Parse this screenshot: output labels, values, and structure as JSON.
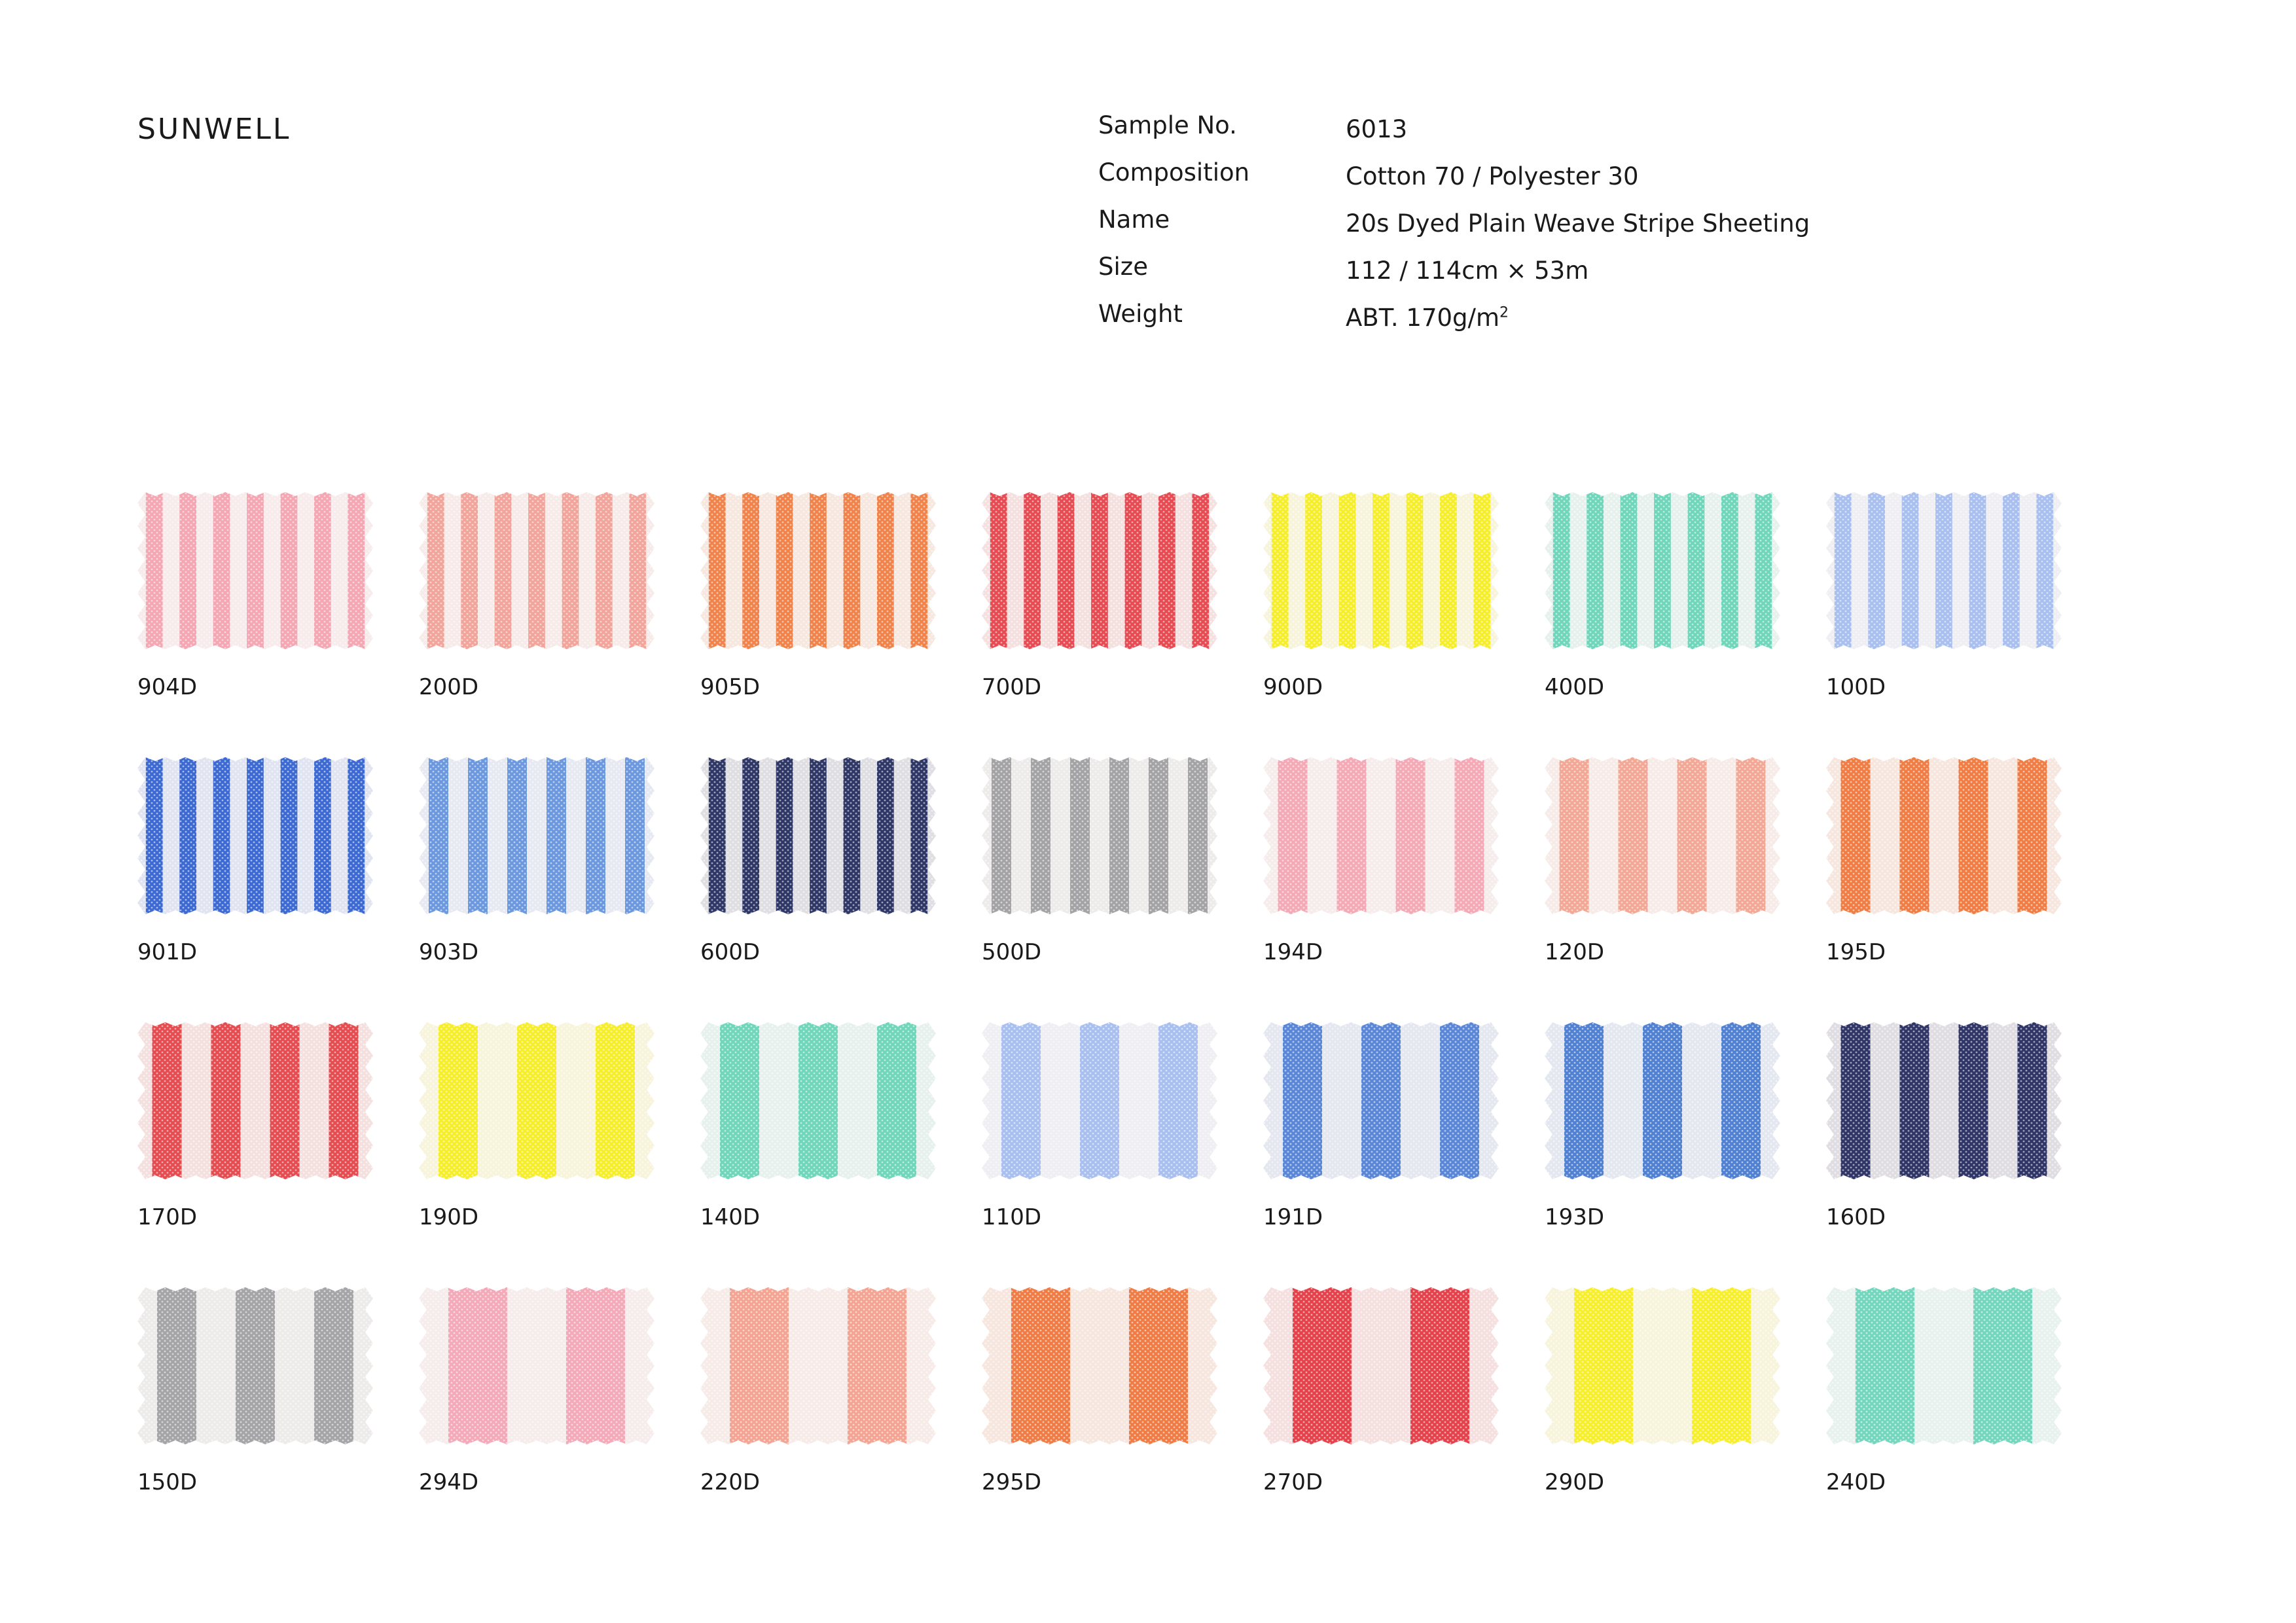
{
  "brand": "SUNWELL",
  "specs": [
    {
      "label": "Sample No.",
      "value": "6013"
    },
    {
      "label": "Composition",
      "value": "Cotton 70 / Polyester 30"
    },
    {
      "label": "Name",
      "value": "20s Dyed Plain Weave Stripe Sheeting"
    },
    {
      "label": "Size",
      "value": "112 / 114cm × 53m"
    },
    {
      "label": "Weight",
      "value": "ABT. 170g/m",
      "superscript": "2"
    }
  ],
  "swatches": [
    [
      {
        "code": "904D",
        "color": "#f4a7b3",
        "stripes": 7
      },
      {
        "code": "200D",
        "color": "#f2a49a",
        "stripes": 7
      },
      {
        "code": "905D",
        "color": "#f0824a",
        "stripes": 7
      },
      {
        "code": "700D",
        "color": "#e84a52",
        "stripes": 7
      },
      {
        "code": "900D",
        "color": "#f6ee2a",
        "stripes": 7
      },
      {
        "code": "400D",
        "color": "#6fd6bb",
        "stripes": 7
      },
      {
        "code": "100D",
        "color": "#a9bff0",
        "stripes": 7
      }
    ],
    [
      {
        "code": "901D",
        "color": "#3d6ad2",
        "stripes": 7
      },
      {
        "code": "903D",
        "color": "#6b98de",
        "stripes": 6
      },
      {
        "code": "600D",
        "color": "#2e3766",
        "stripes": 7
      },
      {
        "code": "500D",
        "color": "#a3a3a6",
        "stripes": 6
      },
      {
        "code": "194D",
        "color": "#f4a9b6",
        "stripes": 4
      },
      {
        "code": "120D",
        "color": "#f3a896",
        "stripes": 4
      },
      {
        "code": "195D",
        "color": "#ef7d44",
        "stripes": 4
      }
    ],
    [
      {
        "code": "170D",
        "color": "#e54b4f",
        "stripes": 4
      },
      {
        "code": "190D",
        "color": "#f6ee2a",
        "stripes": 3
      },
      {
        "code": "140D",
        "color": "#6fd6bb",
        "stripes": 3
      },
      {
        "code": "110D",
        "color": "#a9bff0",
        "stripes": 3
      },
      {
        "code": "191D",
        "color": "#5a86d8",
        "stripes": 3
      },
      {
        "code": "193D",
        "color": "#4f80d2",
        "stripes": 3
      },
      {
        "code": "160D",
        "color": "#2f3566",
        "stripes": 4
      }
    ],
    [
      {
        "code": "150D",
        "color": "#a5a5a8",
        "stripes": 3
      },
      {
        "code": "294D",
        "color": "#f4a9b9",
        "stripes": 2
      },
      {
        "code": "220D",
        "color": "#f4a492",
        "stripes": 2
      },
      {
        "code": "295D",
        "color": "#f07c45",
        "stripes": 2
      },
      {
        "code": "270D",
        "color": "#e5414a",
        "stripes": 2
      },
      {
        "code": "290D",
        "color": "#f7ee2c",
        "stripes": 2
      },
      {
        "code": "240D",
        "color": "#73d6bd",
        "stripes": 2
      }
    ]
  ]
}
